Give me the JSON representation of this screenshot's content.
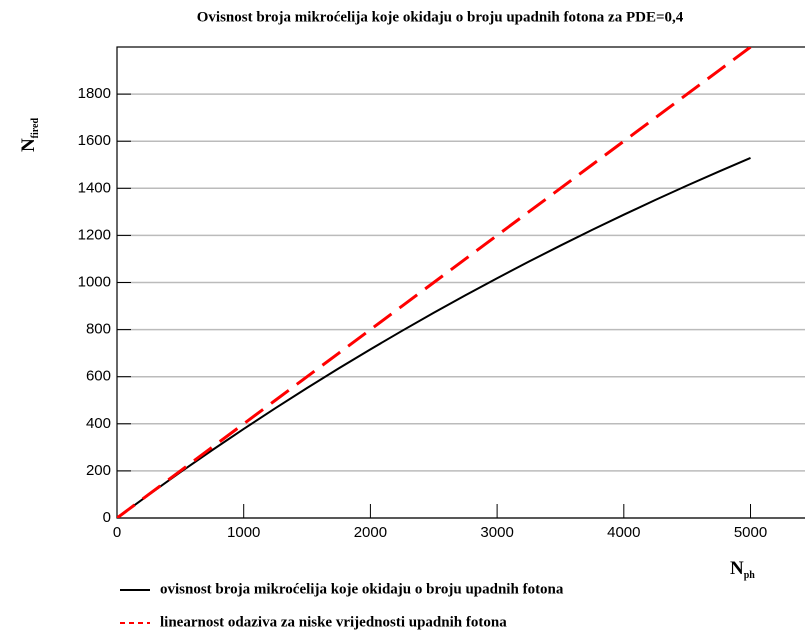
{
  "chart_data": {
    "type": "line",
    "title": "Ovisnost broja mikroćelija koje okidaju o broju upadnih fotona za PDE=0,4",
    "xlabel": "N",
    "xlabel_sub": "ph",
    "ylabel": "N",
    "ylabel_sub": "fired",
    "x": [
      0,
      250,
      500,
      750,
      1000,
      1250,
      1500,
      1750,
      2000,
      2250,
      2500,
      2750,
      3000,
      3250,
      3500,
      3750,
      4000,
      4250,
      4500,
      4750,
      5000
    ],
    "series": [
      {
        "name": "ovisnost broja mikroćelija koje okidaju o broju upadnih fotona",
        "color": "#000000",
        "dash": "solid",
        "values": [
          0,
          98.6,
          194.5,
          287.7,
          378.3,
          466.4,
          552.0,
          635.3,
          716.2,
          794.9,
          871.5,
          945.9,
          1018.2,
          1088.5,
          1156.9,
          1223.3,
          1287.9,
          1350.8,
          1411.9,
          1471.2,
          1529.0
        ]
      },
      {
        "name": "linearnost odaziva za niske vrijednosti upadnih fotona",
        "color": "#ff0000",
        "dash": "dashed",
        "values": [
          0,
          100,
          200,
          300,
          400,
          500,
          600,
          700,
          800,
          900,
          1000,
          1100,
          1200,
          1300,
          1400,
          1500,
          1600,
          1700,
          1800,
          1900,
          2000
        ]
      }
    ],
    "xlim": [
      0,
      5430
    ],
    "ylim": [
      0,
      2000
    ],
    "xticks": [
      0,
      1000,
      2000,
      3000,
      4000,
      5000
    ],
    "yticks": [
      0,
      200,
      400,
      600,
      800,
      1000,
      1200,
      1400,
      1600,
      1800
    ],
    "grid": "y",
    "legend": "bottom"
  }
}
